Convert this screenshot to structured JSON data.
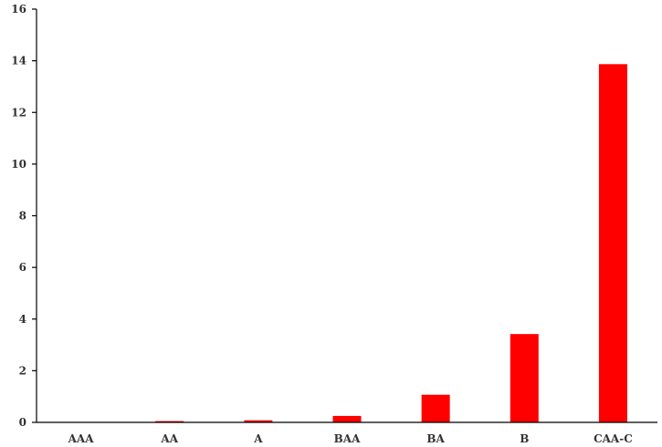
{
  "chart_data": {
    "type": "bar",
    "title": "",
    "xlabel": "",
    "ylabel": "",
    "categories": [
      "AAA",
      "AA",
      "A",
      "BAA",
      "BA",
      "B",
      "CAA-C"
    ],
    "values": [
      0.0,
      0.05,
      0.08,
      0.25,
      1.07,
      3.42,
      13.87
    ],
    "ylim": [
      0,
      16
    ],
    "yticks": [
      0,
      2,
      4,
      6,
      8,
      10,
      12,
      14,
      16
    ],
    "bar_color": "#ff0000",
    "grid": false,
    "legend": "none"
  }
}
